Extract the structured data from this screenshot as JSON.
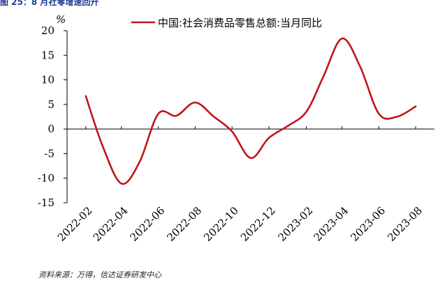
{
  "header": {
    "figure_title": "图 25：8 月社零增速回升"
  },
  "footer": {
    "source": "资料来源：万得，信达证券研发中心"
  },
  "chart_data": {
    "type": "line",
    "title": "",
    "ylabel": "%",
    "xlabel": "",
    "ylim": [
      -15,
      20
    ],
    "yticks": [
      20,
      15,
      10,
      5,
      0,
      -5,
      -10,
      -15
    ],
    "xlim": [
      "2022-01-15",
      "2023-09-15"
    ],
    "x_tick_labels": [
      "2022-02",
      "2022-04",
      "2022-06",
      "2022-08",
      "2022-10",
      "2022-12",
      "2023-02",
      "2023-04",
      "2023-06",
      "2023-08"
    ],
    "series": [
      {
        "name": "中国:社会消费品零售总额:当月同比",
        "color": "#c0141c",
        "x": [
          "2022-02",
          "2022-03",
          "2022-04",
          "2022-05",
          "2022-06",
          "2022-07",
          "2022-08",
          "2022-09",
          "2022-10",
          "2022-11",
          "2022-12",
          "2023-01",
          "2023-02",
          "2023-03",
          "2023-04",
          "2023-05",
          "2023-06",
          "2023-07",
          "2023-08"
        ],
        "values": [
          6.7,
          -3.5,
          -11.1,
          -6.7,
          3.1,
          2.7,
          5.4,
          2.5,
          -0.5,
          -5.9,
          -1.8,
          0.6,
          3.5,
          10.6,
          18.4,
          12.7,
          3.1,
          2.5,
          4.6
        ]
      }
    ],
    "legend_position": "top-center",
    "grid": false
  }
}
